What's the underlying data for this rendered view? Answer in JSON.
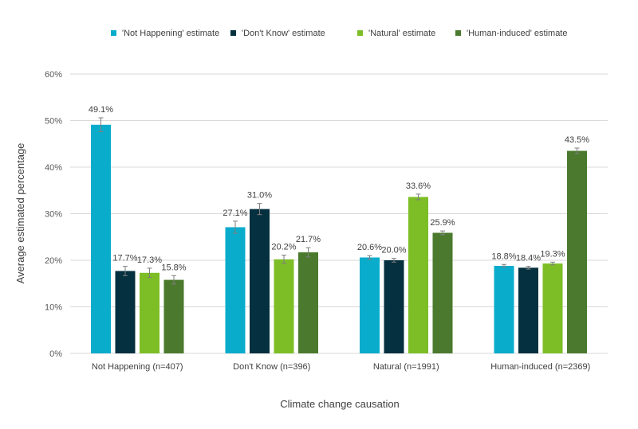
{
  "chart_data": {
    "type": "bar",
    "title": "",
    "xlabel": "Climate change causation",
    "ylabel": "Average estimated percentage",
    "ylim": [
      0,
      60
    ],
    "yticks": [
      0,
      10,
      20,
      30,
      40,
      50,
      60
    ],
    "ytick_suffix": "%",
    "grid": true,
    "legend_position": "top",
    "categories": [
      "Not Happening (n=407)",
      "Don't Know (n=396)",
      "Natural (n=1991)",
      "Human-induced (n=2369)"
    ],
    "series": [
      {
        "name": "'Not Happening' estimate",
        "color": "#0AACCC",
        "values": [
          49.1,
          27.1,
          20.6,
          18.8
        ],
        "labels": [
          "49.1%",
          "27.1%",
          "20.6%",
          "18.8%"
        ],
        "errors": [
          1.5,
          1.3,
          0.4,
          0.3
        ]
      },
      {
        "name": "'Don't Know' estimate",
        "color": "#04303F",
        "values": [
          17.7,
          31.0,
          20.0,
          18.4
        ],
        "labels": [
          "17.7%",
          "31.0%",
          "20.0%",
          "18.4%"
        ],
        "errors": [
          1.0,
          1.2,
          0.4,
          0.3
        ]
      },
      {
        "name": "'Natural' estimate",
        "color": "#7DBE26",
        "values": [
          17.3,
          20.2,
          33.6,
          19.3
        ],
        "labels": [
          "17.3%",
          "20.2%",
          "33.6%",
          "19.3%"
        ],
        "errors": [
          1.0,
          0.9,
          0.6,
          0.3
        ]
      },
      {
        "name": "'Human-induced' estimate",
        "color": "#4B7A2E",
        "values": [
          15.8,
          21.7,
          25.9,
          43.5
        ],
        "labels": [
          "15.8%",
          "21.7%",
          "25.9%",
          "43.5%"
        ],
        "errors": [
          0.9,
          1.0,
          0.4,
          0.6
        ]
      }
    ]
  }
}
